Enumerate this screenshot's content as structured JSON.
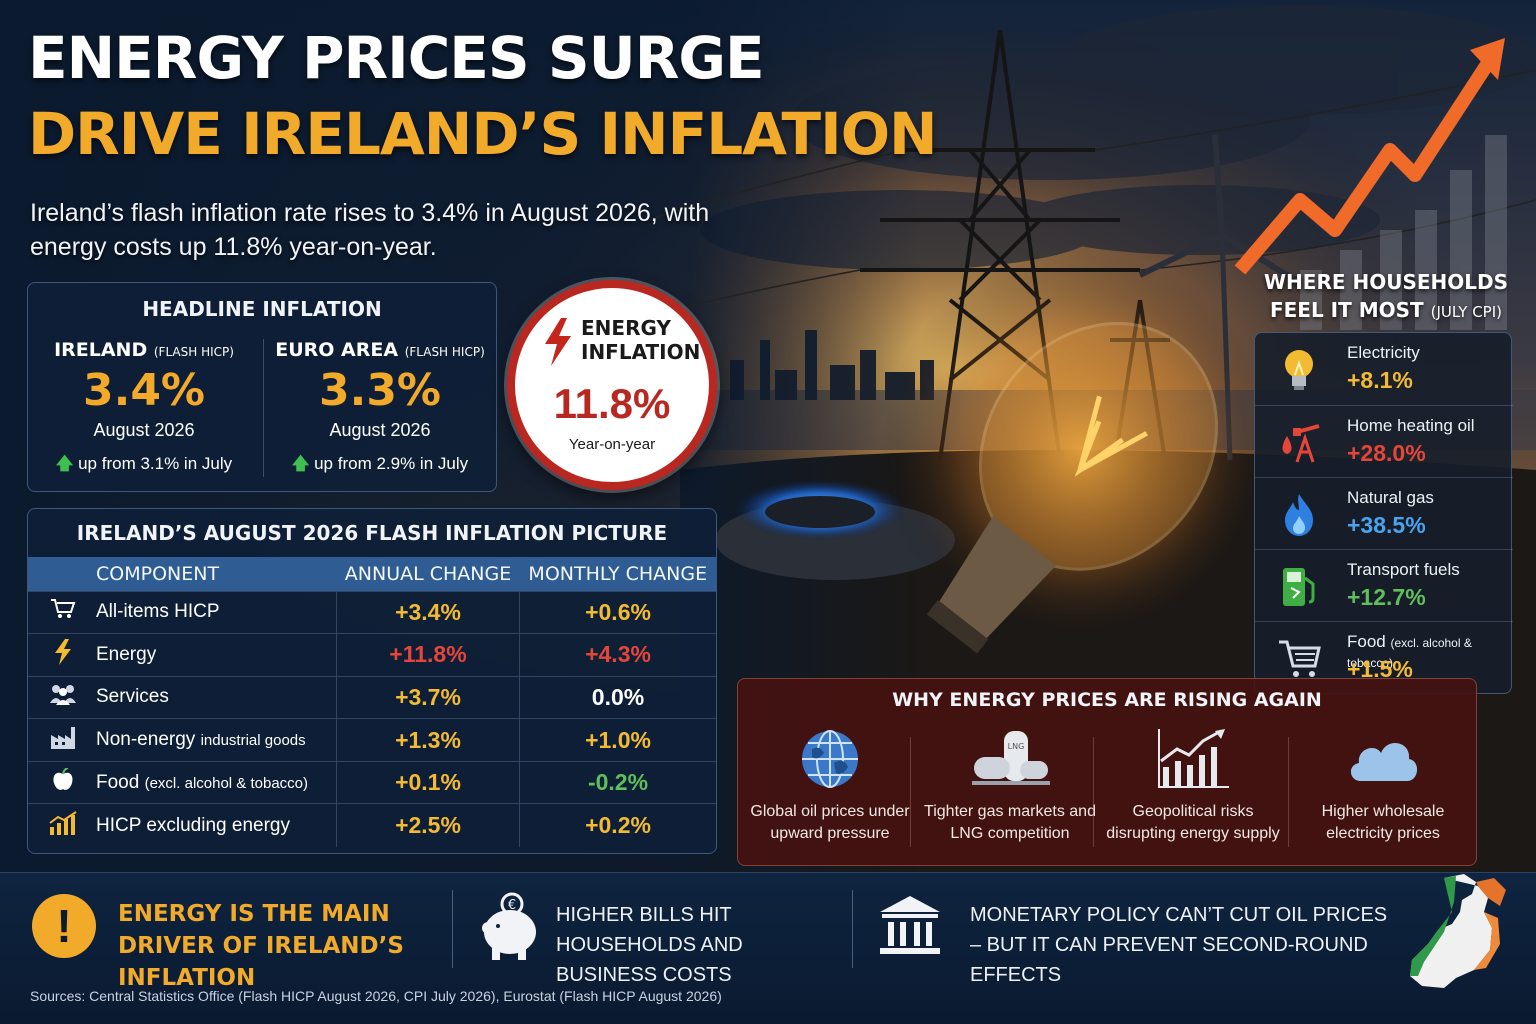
{
  "title": {
    "line1": "ENERGY PRICES SURGE",
    "line2": "DRIVE IRELAND’S INFLATION",
    "subtitle": "Ireland’s flash inflation rate rises to 3.4% in August 2026, with energy costs up 11.8% year-on-year."
  },
  "headline": {
    "title": "HEADLINE INFLATION",
    "ireland": {
      "name": "IRELAND",
      "tag": "(FLASH HICP)",
      "value": "3.4%",
      "month": "August 2026",
      "change": "up from 3.1% in July"
    },
    "euro": {
      "name": "EURO AREA",
      "tag": "(FLASH HICP)",
      "value": "3.3%",
      "month": "August 2026",
      "change": "up from 2.9% in July"
    }
  },
  "energy_badge": {
    "label": "ENERGY INFLATION",
    "value": "11.8%",
    "sub": "Year-on-year"
  },
  "table": {
    "title": "IRELAND’S AUGUST 2026 FLASH INFLATION PICTURE",
    "headers": [
      "COMPONENT",
      "ANNUAL CHANGE",
      "MONTHLY CHANGE"
    ],
    "rows": [
      {
        "name": "All-items HICP",
        "small": "",
        "annual": "+3.4%",
        "monthly": "+0.6%",
        "icon": "cart-icon"
      },
      {
        "name": "Energy",
        "small": "",
        "annual": "+11.8%",
        "monthly": "+4.3%",
        "icon": "lightning-icon"
      },
      {
        "name": "Services",
        "small": "",
        "annual": "+3.7%",
        "monthly": "0.0%",
        "icon": "people-icon"
      },
      {
        "name": "Non-energy",
        "small": "industrial goods",
        "annual": "+1.3%",
        "monthly": "+1.0%",
        "icon": "factory-icon"
      },
      {
        "name": "Food",
        "small": "(excl. alcohol & tobacco)",
        "annual": "+0.1%",
        "monthly": "-0.2%",
        "icon": "apple-icon"
      },
      {
        "name": "HICP excluding energy",
        "small": "",
        "annual": "+2.5%",
        "monthly": "+0.2%",
        "icon": "bar-chart-icon"
      }
    ]
  },
  "households": {
    "title": "WHERE HOUSEHOLDS FEEL IT MOST",
    "title_tag": "(JULY CPI)",
    "items": [
      {
        "label": "Electricity",
        "small": "",
        "value": "+8.1%",
        "icon": "lightbulb-icon",
        "color": "#f4bb32"
      },
      {
        "label": "Home heating oil",
        "small": "",
        "value": "+28.0%",
        "icon": "oil-pump-icon",
        "color": "#e6463a"
      },
      {
        "label": "Natural gas",
        "small": "",
        "value": "+38.5%",
        "icon": "flame-icon",
        "color": "#4aa3f0"
      },
      {
        "label": "Transport fuels",
        "small": "",
        "value": "+12.7%",
        "icon": "fuel-pump-icon",
        "color": "#5fbf5a"
      },
      {
        "label": "Food",
        "small": "(excl. alcohol & tobacco)",
        "value": "+1.5%",
        "icon": "cart-icon",
        "color": "#f4bb32"
      }
    ]
  },
  "why": {
    "title": "WHY ENERGY PRICES ARE RISING AGAIN",
    "items": [
      {
        "text": "Global oil prices under upward pressure",
        "icon": "globe-icon"
      },
      {
        "text": "Tighter gas markets and LNG competition",
        "icon": "gas-tank-icon"
      },
      {
        "text": "Geopolitical risks disrupting energy supply",
        "icon": "rising-chart-icon"
      },
      {
        "text": "Higher wholesale electricity prices",
        "icon": "cloud-icon"
      }
    ]
  },
  "footer": {
    "main": "ENERGY IS THE MAIN DRIVER OF IRELAND’S INFLATION",
    "bills": "HIGHER BILLS HIT HOUSEHOLDS AND BUSINESS COSTS",
    "policy": "MONETARY POLICY CAN’T CUT OIL PRICES – BUT IT CAN PREVENT SECOND-ROUND EFFECTS",
    "sources": "Sources: Central Statistics Office (Flash HICP August 2026, CPI July 2026), Eurostat (Flash HICP August 2026)"
  },
  "colors": {
    "accent": "#f2aa2a",
    "red": "#b82821",
    "green": "#3fbf4f",
    "navy": "#0c1a2c"
  }
}
